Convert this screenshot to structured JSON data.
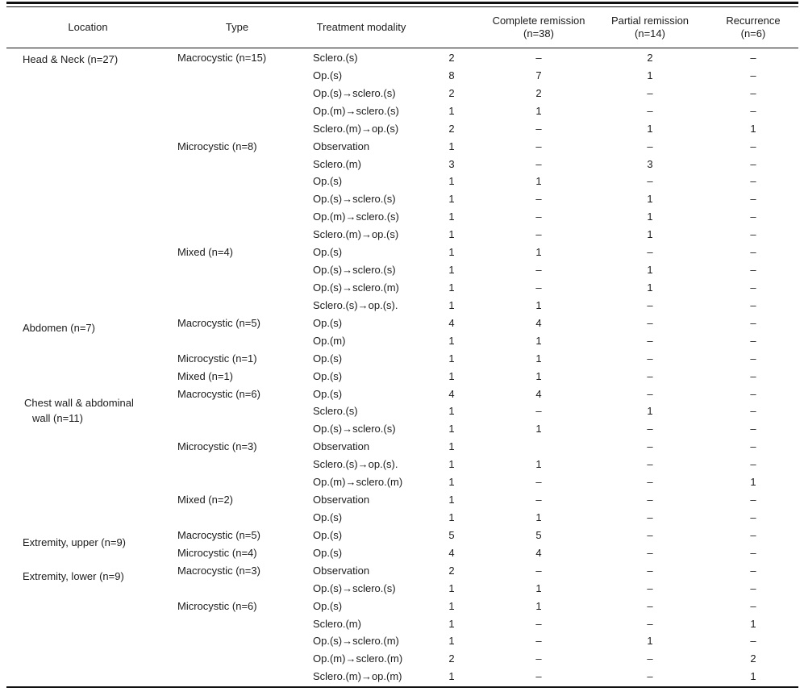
{
  "colors": {
    "background": "#ffffff",
    "text": "#1c1c1c",
    "rule": "#111111"
  },
  "table": {
    "headers": {
      "location": "Location",
      "type": "Type",
      "modality": "Treatment modality",
      "count": "",
      "complete": "Complete remission\n(n=38)",
      "partial": "Partial remission\n(n=14)",
      "recurrence": "Recurrence\n(n=6)"
    },
    "locations": [
      {
        "label": "Head & Neck (n=27)"
      },
      {
        "label": "Abdomen (n=7)"
      },
      {
        "label": "Chest wall & abdominal\nwall (n=11)"
      },
      {
        "label": "Extremity, upper (n=9)"
      },
      {
        "label": "Extremity, lower (n=9)"
      }
    ],
    "rows": [
      {
        "location": "",
        "type": "Macrocystic (n=15)",
        "modality": "Sclero.(s)",
        "count": "2",
        "complete": "–",
        "partial": "2",
        "recurrence": "–"
      },
      {
        "location": "",
        "type": "",
        "modality": "Op.(s)",
        "count": "8",
        "complete": "7",
        "partial": "1",
        "recurrence": "–"
      },
      {
        "location": "",
        "type": "",
        "modality": "Op.(s)→sclero.(s)",
        "count": "2",
        "complete": "2",
        "partial": "–",
        "recurrence": "–"
      },
      {
        "location": "",
        "type": "",
        "modality": "Op.(m)→sclero.(s)",
        "count": "1",
        "complete": "1",
        "partial": "–",
        "recurrence": "–"
      },
      {
        "location": "",
        "type": "",
        "modality": "Sclero.(m)→op.(s)",
        "count": "2",
        "complete": "–",
        "partial": "1",
        "recurrence": "1"
      },
      {
        "location": "",
        "type": "Microcystic (n=8)",
        "modality": "Observation",
        "count": "1",
        "complete": "–",
        "partial": "–",
        "recurrence": "–"
      },
      {
        "location": "",
        "type": "",
        "modality": "Sclero.(m)",
        "count": "3",
        "complete": "–",
        "partial": "3",
        "recurrence": "–"
      },
      {
        "location": "",
        "type": "",
        "modality": "Op.(s)",
        "count": "1",
        "complete": "1",
        "partial": "–",
        "recurrence": "–"
      },
      {
        "location": "",
        "type": "",
        "modality": "Op.(s)→sclero.(s)",
        "count": "1",
        "complete": "–",
        "partial": "1",
        "recurrence": "–"
      },
      {
        "location": "",
        "type": "",
        "modality": "Op.(m)→sclero.(s)",
        "count": "1",
        "complete": "–",
        "partial": "1",
        "recurrence": "–"
      },
      {
        "location": "",
        "type": "",
        "modality": "Sclero.(m)→op.(s)",
        "count": "1",
        "complete": "–",
        "partial": "1",
        "recurrence": "–"
      },
      {
        "location": "",
        "type": "Mixed (n=4)",
        "modality": "Op.(s)",
        "count": "1",
        "complete": "1",
        "partial": "–",
        "recurrence": "–"
      },
      {
        "location": "",
        "type": "",
        "modality": "Op.(s)→sclero.(s)",
        "count": "1",
        "complete": "–",
        "partial": "1",
        "recurrence": "–"
      },
      {
        "location": "",
        "type": "",
        "modality": "Op.(s)→sclero.(m)",
        "count": "1",
        "complete": "–",
        "partial": "1",
        "recurrence": "–"
      },
      {
        "location": "",
        "type": "",
        "modality": "Sclero.(s)→op.(s).",
        "count": "1",
        "complete": "1",
        "partial": "–",
        "recurrence": "–"
      },
      {
        "location": "",
        "type": "Macrocystic (n=5)",
        "modality": "Op.(s)",
        "count": "4",
        "complete": "4",
        "partial": "–",
        "recurrence": "–"
      },
      {
        "location": "",
        "type": "",
        "modality": "Op.(m)",
        "count": "1",
        "complete": "1",
        "partial": "–",
        "recurrence": "–"
      },
      {
        "location": "",
        "type": "Microcystic (n=1)",
        "modality": "Op.(s)",
        "count": "1",
        "complete": "1",
        "partial": "–",
        "recurrence": "–"
      },
      {
        "location": "",
        "type": "Mixed (n=1)",
        "modality": "Op.(s)",
        "count": "1",
        "complete": "1",
        "partial": "–",
        "recurrence": "–"
      },
      {
        "location": "",
        "type": "Macrocystic (n=6)",
        "modality": "Op.(s)",
        "count": "4",
        "complete": "4",
        "partial": "–",
        "recurrence": "–"
      },
      {
        "location": "",
        "type": "",
        "modality": "Sclero.(s)",
        "count": "1",
        "complete": "–",
        "partial": "1",
        "recurrence": "–"
      },
      {
        "location": "",
        "type": "",
        "modality": "Op.(s)→sclero.(s)",
        "count": "1",
        "complete": "1",
        "partial": "–",
        "recurrence": "–"
      },
      {
        "location": "",
        "type": "Microcystic (n=3)",
        "modality": "Observation",
        "count": "1",
        "complete": "",
        "partial": "–",
        "recurrence": "–"
      },
      {
        "location": "",
        "type": "",
        "modality": "Sclero.(s)→op.(s).",
        "count": "1",
        "complete": "1",
        "partial": "–",
        "recurrence": "–"
      },
      {
        "location": "",
        "type": "",
        "modality": "Op.(m)→sclero.(m)",
        "count": "1",
        "complete": "–",
        "partial": "–",
        "recurrence": "1"
      },
      {
        "location": "",
        "type": "Mixed (n=2)",
        "modality": "Observation",
        "count": "1",
        "complete": "–",
        "partial": "–",
        "recurrence": "–"
      },
      {
        "location": "",
        "type": "",
        "modality": "Op.(s)",
        "count": "1",
        "complete": "1",
        "partial": "–",
        "recurrence": "–"
      },
      {
        "location": "",
        "type": "Macrocystic (n=5)",
        "modality": "Op.(s)",
        "count": "5",
        "complete": "5",
        "partial": "–",
        "recurrence": "–"
      },
      {
        "location": "",
        "type": "Microcystic (n=4)",
        "modality": "Op.(s)",
        "count": "4",
        "complete": "4",
        "partial": "–",
        "recurrence": "–"
      },
      {
        "location": "",
        "type": "Macrocystic (n=3)",
        "modality": "Observation",
        "count": "2",
        "complete": "–",
        "partial": "–",
        "recurrence": "–"
      },
      {
        "location": "",
        "type": "",
        "modality": "Op.(s)→sclero.(s)",
        "count": "1",
        "complete": "1",
        "partial": "–",
        "recurrence": "–"
      },
      {
        "location": "",
        "type": "Microcystic (n=6)",
        "modality": "Op.(s)",
        "count": "1",
        "complete": "1",
        "partial": "–",
        "recurrence": "–"
      },
      {
        "location": "",
        "type": "",
        "modality": "Sclero.(m)",
        "count": "1",
        "complete": "–",
        "partial": "–",
        "recurrence": "1"
      },
      {
        "location": "",
        "type": "",
        "modality": "Op.(s)→sclero.(m)",
        "count": "1",
        "complete": "–",
        "partial": "1",
        "recurrence": "–"
      },
      {
        "location": "",
        "type": "",
        "modality": "Op.(m)→sclero.(m)",
        "count": "2",
        "complete": "–",
        "partial": "–",
        "recurrence": "2"
      },
      {
        "location": "",
        "type": "",
        "modality": "Sclero.(m)→op.(m)",
        "count": "1",
        "complete": "–",
        "partial": "–",
        "recurrence": "1"
      }
    ]
  }
}
